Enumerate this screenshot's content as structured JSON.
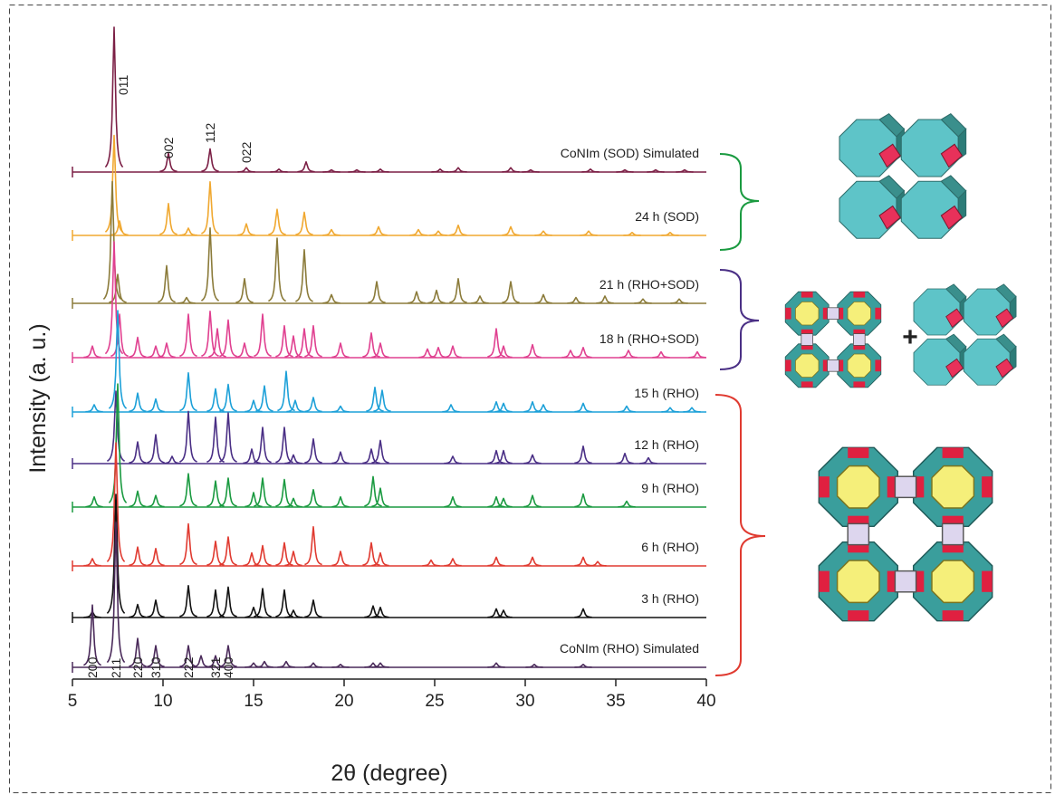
{
  "chart_data": {
    "type": "stacked-pattern",
    "xlabel": "2θ (degree)",
    "ylabel": "Intensity (a. u.)",
    "xlim": [
      5,
      40
    ],
    "xticks": [
      5,
      10,
      15,
      20,
      25,
      30,
      35,
      40
    ],
    "series": [
      {
        "name": "CoNIm (SOD) Simulated",
        "color": "#7b1f45",
        "x": [
          7.3,
          10.3,
          12.6,
          14.6,
          16.4,
          17.9,
          19.3,
          20.7,
          22.0,
          25.3,
          26.3,
          29.2,
          30.3,
          33.6,
          35.5,
          37.2,
          38.8
        ],
        "values": [
          100,
          13,
          16,
          3,
          2,
          7,
          1.5,
          1.5,
          2,
          2,
          3,
          3,
          1.5,
          2,
          1.5,
          1.5,
          1.5
        ]
      },
      {
        "name": "24 h (SOD)",
        "color": "#f0a830",
        "x": [
          7.3,
          7.6,
          10.3,
          11.4,
          12.6,
          14.6,
          16.3,
          17.8,
          19.3,
          21.9,
          24.1,
          25.2,
          26.3,
          29.2,
          31.0,
          33.5,
          35.9,
          38.0
        ],
        "values": [
          69,
          10,
          22,
          5,
          37,
          8,
          18,
          16,
          4,
          6,
          4,
          3,
          7,
          6,
          3,
          3,
          2,
          2
        ]
      },
      {
        "name": "21 h (RHO+SOD)",
        "color": "#8b7b3a",
        "x": [
          7.2,
          7.5,
          10.2,
          11.3,
          12.6,
          14.5,
          16.3,
          17.8,
          19.3,
          21.8,
          24.0,
          25.1,
          26.3,
          27.5,
          29.2,
          31.0,
          32.8,
          34.4,
          36.5,
          38.5
        ],
        "values": [
          84,
          20,
          26,
          4,
          52,
          17,
          45,
          37,
          6,
          15,
          8,
          9,
          17,
          5,
          15,
          6,
          4,
          5,
          3,
          3
        ]
      },
      {
        "name": "18 h (RHO+SOD)",
        "color": "#e04090",
        "x": [
          6.1,
          7.3,
          7.6,
          8.6,
          9.6,
          10.2,
          11.4,
          12.6,
          13.0,
          13.6,
          14.5,
          15.5,
          16.7,
          17.2,
          17.8,
          18.3,
          19.8,
          21.5,
          22.0,
          24.6,
          25.2,
          26.0,
          28.4,
          28.8,
          30.4,
          32.5,
          33.2,
          35.7,
          37.5,
          39.5
        ],
        "values": [
          8,
          80,
          30,
          14,
          8,
          10,
          30,
          32,
          20,
          26,
          10,
          30,
          22,
          15,
          20,
          22,
          10,
          17,
          10,
          6,
          7,
          8,
          20,
          8,
          9,
          5,
          7,
          5,
          4,
          4
        ]
      },
      {
        "name": "15 h (RHO)",
        "color": "#1ca0d8",
        "x": [
          6.2,
          7.5,
          8.6,
          9.6,
          11.4,
          12.9,
          13.6,
          15.0,
          15.6,
          16.8,
          17.3,
          18.3,
          19.8,
          21.7,
          22.1,
          25.9,
          28.4,
          28.8,
          30.4,
          31.0,
          33.2,
          35.6,
          38.0,
          39.2
        ],
        "values": [
          5,
          70,
          13,
          9,
          27,
          16,
          19,
          8,
          18,
          28,
          8,
          10,
          4,
          17,
          15,
          5,
          7,
          6,
          7,
          5,
          6,
          4,
          3,
          3
        ]
      },
      {
        "name": "12 h (RHO)",
        "color": "#4a2f85",
        "x": [
          7.4,
          8.6,
          9.6,
          10.5,
          11.4,
          12.9,
          13.6,
          14.9,
          15.5,
          16.7,
          17.2,
          18.3,
          19.8,
          21.5,
          22.0,
          26.0,
          28.4,
          28.8,
          30.4,
          33.2,
          35.5,
          36.8
        ],
        "values": [
          50,
          15,
          20,
          5,
          36,
          32,
          35,
          10,
          25,
          25,
          6,
          17,
          8,
          10,
          16,
          5,
          9,
          9,
          6,
          12,
          7,
          4
        ]
      },
      {
        "name": "9 h (RHO)",
        "color": "#1a9a40",
        "x": [
          6.2,
          7.5,
          8.6,
          9.6,
          11.4,
          12.9,
          13.6,
          15.0,
          15.5,
          16.7,
          17.2,
          18.3,
          19.8,
          21.6,
          22.0,
          26.0,
          28.4,
          28.8,
          30.4,
          33.2,
          35.6
        ],
        "values": [
          7,
          85,
          11,
          8,
          23,
          18,
          20,
          10,
          20,
          19,
          6,
          12,
          7,
          21,
          13,
          7,
          7,
          6,
          8,
          9,
          4
        ]
      },
      {
        "name": "6 h (RHO)",
        "color": "#e03a30",
        "x": [
          6.1,
          7.4,
          8.6,
          9.6,
          11.4,
          12.9,
          13.6,
          14.9,
          15.5,
          16.7,
          17.2,
          18.3,
          19.8,
          21.5,
          22.0,
          24.8,
          26.0,
          28.4,
          30.4,
          33.2,
          34.0
        ],
        "values": [
          5,
          85,
          13,
          12,
          29,
          17,
          20,
          9,
          14,
          16,
          10,
          27,
          10,
          16,
          9,
          4,
          5,
          6,
          6,
          6,
          3
        ]
      },
      {
        "name": "3 h (RHO)",
        "color": "#111111",
        "x": [
          6.1,
          7.4,
          8.6,
          9.6,
          11.4,
          12.9,
          13.6,
          15.0,
          15.5,
          16.7,
          17.2,
          18.3,
          21.6,
          22.0,
          28.4,
          28.8,
          33.2
        ],
        "values": [
          4,
          85,
          9,
          12,
          22,
          19,
          21,
          7,
          20,
          19,
          5,
          12,
          8,
          7,
          6,
          5,
          6
        ]
      },
      {
        "name": "CoNIm (RHO) Simulated",
        "color": "#4a2a5a",
        "x": [
          6.1,
          7.4,
          8.6,
          9.6,
          11.4,
          12.1,
          12.9,
          13.6,
          15.0,
          15.6,
          16.8,
          18.3,
          19.8,
          21.6,
          22.0,
          28.4,
          30.5,
          33.2
        ],
        "values": [
          43,
          100,
          20,
          15,
          15,
          8,
          8,
          15,
          3,
          4,
          4,
          3,
          2,
          3,
          3,
          3,
          2,
          2
        ]
      }
    ],
    "sod_reflections": [
      {
        "label": "011",
        "x": 7.8
      },
      {
        "label": "002",
        "x": 10.3
      },
      {
        "label": "112",
        "x": 12.6
      },
      {
        "label": "022",
        "x": 14.6
      }
    ],
    "rho_reflections": [
      {
        "label": "200",
        "x": 6.1
      },
      {
        "label": "211",
        "x": 7.4
      },
      {
        "label": "220",
        "x": 8.6
      },
      {
        "label": "310",
        "x": 9.6
      },
      {
        "label": "222",
        "x": 11.4
      },
      {
        "label": "321",
        "x": 12.9
      },
      {
        "label": "400",
        "x": 13.6
      }
    ]
  },
  "diagram": {
    "plus": "+"
  }
}
